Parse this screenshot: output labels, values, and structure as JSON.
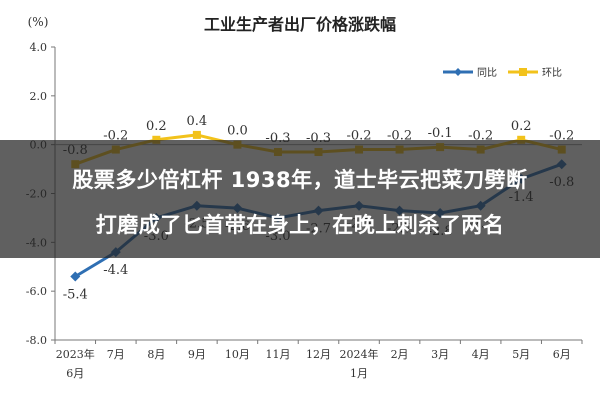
{
  "chart_data": {
    "type": "line",
    "title": "工业生产者出厂价格涨跌幅",
    "ylabel": "(%)",
    "ylim": [
      -8.0,
      4.0
    ],
    "yticks": [
      4.0,
      2.0,
      0.0,
      -2.0,
      -4.0,
      -6.0,
      -8.0
    ],
    "ytick_labels": [
      "4.0",
      "2.0",
      "0.0",
      "-2.0",
      "-4.0",
      "-6.0",
      "-8.0"
    ],
    "categories": [
      "2023年6月",
      "7月",
      "8月",
      "9月",
      "10月",
      "11月",
      "12月",
      "2024年1月",
      "2月",
      "3月",
      "4月",
      "5月",
      "6月"
    ],
    "category_labels": [
      [
        "2023年",
        "6月"
      ],
      [
        "7月"
      ],
      [
        "8月"
      ],
      [
        "9月"
      ],
      [
        "10月"
      ],
      [
        "11月"
      ],
      [
        "12月"
      ],
      [
        "2024年",
        "1月"
      ],
      [
        "2月"
      ],
      [
        "3月"
      ],
      [
        "4月"
      ],
      [
        "5月"
      ],
      [
        "6月"
      ]
    ],
    "legend_position": "top-right",
    "grid": false,
    "series": [
      {
        "name": "同比",
        "color": "#2f6fb3",
        "values": [
          -5.4,
          -4.4,
          -3.0,
          -2.5,
          -2.6,
          -3.0,
          -2.7,
          -2.5,
          -2.7,
          -2.8,
          -2.5,
          -1.4,
          -0.8
        ],
        "labels": [
          "-5.4",
          "-4.4",
          "-3.0",
          "-2.5",
          "-2.6",
          "-3.0",
          "-2.7",
          "-2.5",
          "-2.7",
          "-2.8",
          "-2.5",
          "-1.4",
          "-0.8"
        ]
      },
      {
        "name": "环比",
        "color": "#f2c21b",
        "values": [
          -0.8,
          -0.2,
          0.2,
          0.4,
          0.0,
          -0.3,
          -0.3,
          -0.2,
          -0.2,
          -0.1,
          -0.2,
          0.2,
          -0.2
        ],
        "labels": [
          "-0.8",
          "-0.2",
          "0.2",
          "0.4",
          "0.0",
          "-0.3",
          "-0.3",
          "-0.2",
          "-0.2",
          "-0.1",
          "-0.2",
          "0.2",
          "-0.2"
        ]
      }
    ]
  },
  "overlay": {
    "line1": "股票多少倍杠杆 1938年，道士毕云把菜刀劈断",
    "line2": "打磨成了匕首带在身上，在晚上刺杀了两名"
  }
}
